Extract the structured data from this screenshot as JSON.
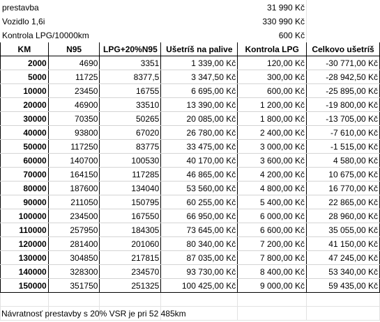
{
  "header_rows": [
    {
      "label": "prestavba",
      "value": "31 990 Kč"
    },
    {
      "label": "Vozidlo 1,6i",
      "value": "330 990 Kč"
    },
    {
      "label": "Kontrola LPG/10000km",
      "value": "600 Kč"
    }
  ],
  "columns": [
    "KM",
    "N95",
    "LPG+20%N95",
    "Ušetríš na palive",
    "Kontrola LPG",
    "Celkovo ušetríš"
  ],
  "rows": [
    [
      "2000",
      "4690",
      "3351",
      "1 339,00 Kč",
      "120,00 Kč",
      "-30 771,00 Kč"
    ],
    [
      "5000",
      "11725",
      "8377,5",
      "3 347,50 Kč",
      "300,00 Kč",
      "-28 942,50 Kč"
    ],
    [
      "10000",
      "23450",
      "16755",
      "6 695,00 Kč",
      "600,00 Kč",
      "-25 895,00 Kč"
    ],
    [
      "20000",
      "46900",
      "33510",
      "13 390,00 Kč",
      "1 200,00 Kč",
      "-19 800,00 Kč"
    ],
    [
      "30000",
      "70350",
      "50265",
      "20 085,00 Kč",
      "1 800,00 Kč",
      "-13 705,00 Kč"
    ],
    [
      "40000",
      "93800",
      "67020",
      "26 780,00 Kč",
      "2 400,00 Kč",
      "-7 610,00 Kč"
    ],
    [
      "50000",
      "117250",
      "83775",
      "33 475,00 Kč",
      "3 000,00 Kč",
      "-1 515,00 Kč"
    ],
    [
      "60000",
      "140700",
      "100530",
      "40 170,00 Kč",
      "3 600,00 Kč",
      "4 580,00 Kč"
    ],
    [
      "70000",
      "164150",
      "117285",
      "46 865,00 Kč",
      "4 200,00 Kč",
      "10 675,00 Kč"
    ],
    [
      "80000",
      "187600",
      "134040",
      "53 560,00 Kč",
      "4 800,00 Kč",
      "16 770,00 Kč"
    ],
    [
      "90000",
      "211050",
      "150795",
      "60 255,00 Kč",
      "5 400,00 Kč",
      "22 865,00 Kč"
    ],
    [
      "100000",
      "234500",
      "167550",
      "66 950,00 Kč",
      "6 000,00 Kč",
      "28 960,00 Kč"
    ],
    [
      "110000",
      "257950",
      "184305",
      "73 645,00 Kč",
      "6 600,00 Kč",
      "35 055,00 Kč"
    ],
    [
      "120000",
      "281400",
      "201060",
      "80 340,00 Kč",
      "7 200,00 Kč",
      "41 150,00 Kč"
    ],
    [
      "130000",
      "304850",
      "217815",
      "87 035,00 Kč",
      "7 800,00 Kč",
      "47 245,00 Kč"
    ],
    [
      "140000",
      "328300",
      "234570",
      "93 730,00 Kč",
      "8 400,00 Kč",
      "53 340,00 Kč"
    ],
    [
      "150000",
      "351750",
      "251325",
      "100 425,00 Kč",
      "9 000,00 Kč",
      "59 435,00 Kč"
    ]
  ],
  "footer_note": "Návratnosť prestavby s 20% VSR je pri  52 485km"
}
